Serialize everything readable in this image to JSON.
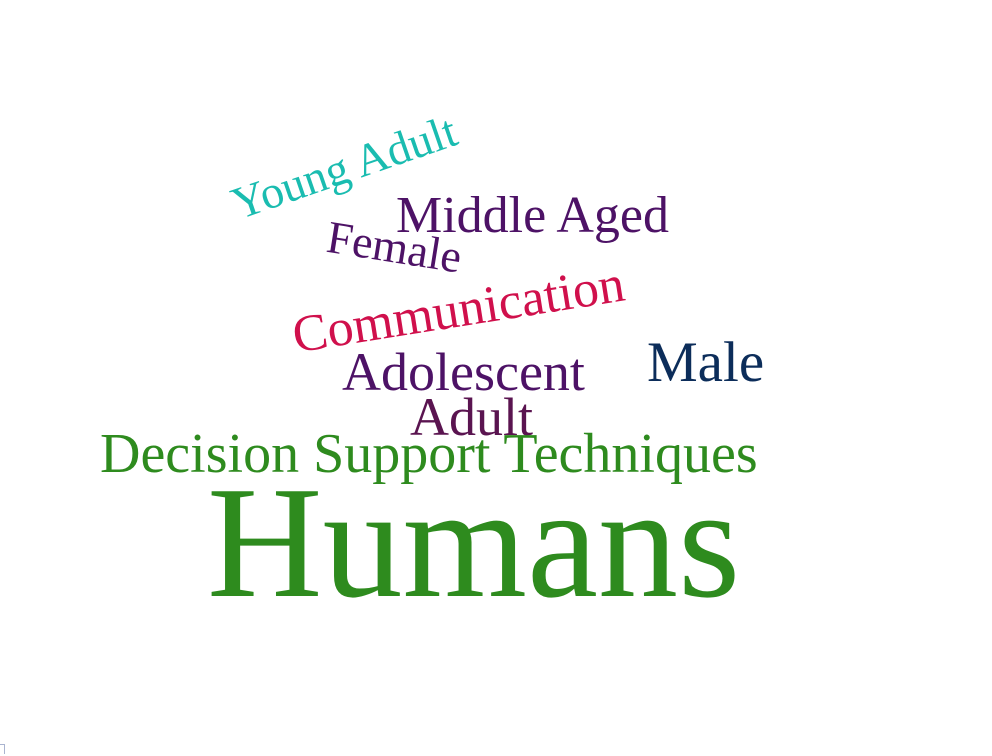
{
  "words": {
    "young_adult": {
      "text": "Young Adult",
      "color": "#1abcb0"
    },
    "middle_aged": {
      "text": "Middle Aged",
      "color": "#4d1266"
    },
    "female": {
      "text": "Female",
      "color": "#4d1266"
    },
    "communication": {
      "text": "Communication",
      "color": "#d0104c"
    },
    "adolescent": {
      "text": "Adolescent",
      "color": "#4d1266"
    },
    "male": {
      "text": "Male",
      "color": "#0c2d5a"
    },
    "adult": {
      "text": "Adult",
      "color": "#5a1450"
    },
    "decision": {
      "text": "Decision Support Techniques",
      "color": "#2e8b1e"
    },
    "humans": {
      "text": "Humans",
      "color": "#2e8b1e"
    }
  }
}
